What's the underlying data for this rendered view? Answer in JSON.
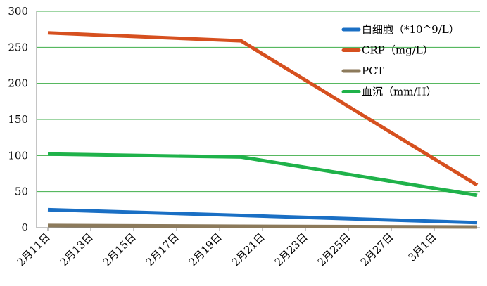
{
  "chart_data": {
    "type": "line",
    "x": [
      "2月11日",
      "2月20日",
      "3月3日"
    ],
    "xticks": [
      "2月11日",
      "2月13日",
      "2月15日",
      "2月17日",
      "2月19日",
      "2月21日",
      "2月23日",
      "2月25日",
      "2月27日",
      "3月1日"
    ],
    "series": [
      {
        "name": "白细胞（*10^9/L）",
        "color": "#1a6fc4",
        "values": [
          25,
          17,
          7
        ]
      },
      {
        "name": "CRP（mg/L）",
        "color": "#d6501f",
        "values": [
          270,
          259,
          59
        ]
      },
      {
        "name": "PCT",
        "color": "#8c7a5b",
        "values": [
          3,
          2,
          1
        ]
      },
      {
        "name": "血沉（mm/H）",
        "color": "#1fb24a",
        "values": [
          102,
          98,
          45
        ]
      }
    ],
    "ylim": [
      0,
      300
    ],
    "yticks": [
      0,
      50,
      100,
      150,
      200,
      250,
      300
    ],
    "grid": true,
    "grid_color": "#3fae4a",
    "legend": "top-right"
  }
}
